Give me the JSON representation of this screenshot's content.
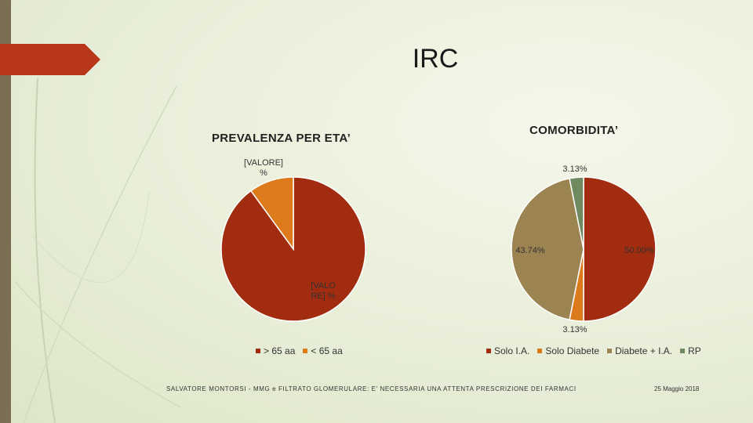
{
  "slide": {
    "title": "IRC",
    "footer_left": "SALVATORE MONTORSI - MMG e FILTRATO GLOMERULARE: E' NECESSARIA UNA ATTENTA PRESCRIZIONE DEI FARMACI",
    "footer_right": "25 Maggio 2018",
    "accent_color": "#b8361a"
  },
  "chart_data": [
    {
      "type": "pie",
      "title": "PREVALENZA PER ETA’",
      "categories": [
        "> 65 aa",
        "< 65 aa"
      ],
      "values": [
        90,
        10
      ],
      "colors": [
        "#a22c10",
        "#dd7a1c"
      ],
      "data_labels": [
        "[VALO RE] %",
        "[VALORE] %"
      ],
      "legend": "bottom"
    },
    {
      "type": "pie",
      "title": "COMORBIDITA’",
      "categories": [
        "Solo I.A.",
        "Solo Diabete",
        "Diabete + I.A.",
        "RP"
      ],
      "values": [
        50.0,
        3.13,
        43.74,
        3.13
      ],
      "colors": [
        "#a22c10",
        "#dd7a1c",
        "#9c8452",
        "#6f8a5e"
      ],
      "data_labels": [
        "50.00%",
        "3.13%",
        "43.74%",
        "3.13%"
      ],
      "legend": "bottom"
    }
  ]
}
